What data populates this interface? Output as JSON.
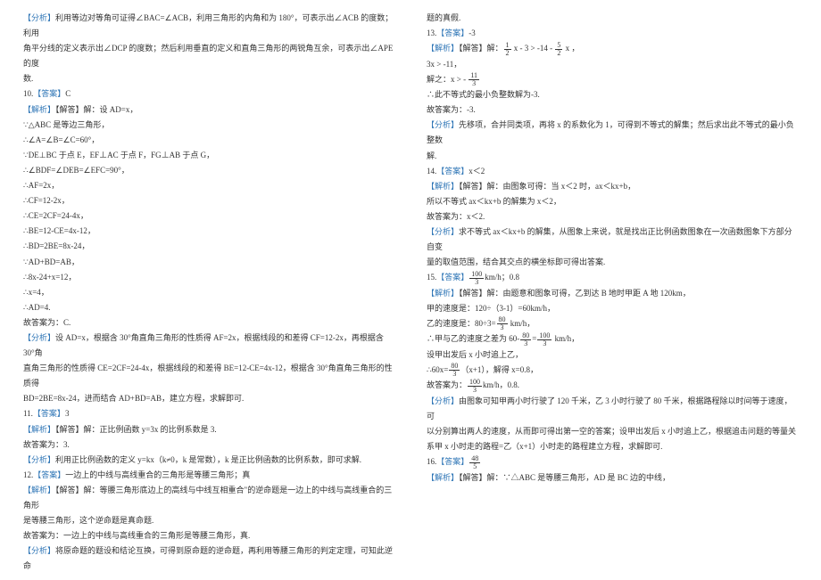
{
  "marks": {
    "analysis": "【分析】",
    "answer": "【答案】",
    "explain": "【解析】",
    "solve": "【解答】"
  },
  "left": {
    "l1": "利用等边对等角可证得∠BAC=∠ACB，利用三角形的内角和为 180°，可表示出∠ACB 的度数；利用",
    "l2": "角平分线的定义表示出∠DCP 的度数；然后利用垂直的定义和直角三角形的两锐角互余，可表示出∠APE 的度",
    "l3": "数.",
    "q10num": "10.",
    "q10ans": "C",
    "s1": "解：设 AD=x，",
    "s2": "∵△ABC 是等边三角形，",
    "s3": "∴∠A=∠B=∠C=60°，",
    "s4": "∵DE⊥BC 于点 E，EF⊥AC 于点 F，FG⊥AB 于点 G，",
    "s5": "∴∠BDF=∠DEB=∠EFC=90°，",
    "s6": "∴AF=2x，",
    "s7": "∴CF=12-2x，",
    "s8": "∴CE=2CF=24-4x，",
    "s9": "∴BE=12-CE=4x-12，",
    "s10": "∴BD=2BE=8x-24，",
    "s11": "∵AD+BD=AB，",
    "s12": "∴8x-24+x=12，",
    "s13": "∴x=4，",
    "s14": "∴AD=4.",
    "s15": "故答案为：C.",
    "an10a": "设 AD=x，根据含 30°角直角三角形的性质得 AF=2x，根据线段的和差得 CF=12-2x，再根据含 30°角",
    "an10b": "直角三角形的性质得 CE=2CF=24-4x，根据线段的和差得 BE=12-CE=4x-12，根据含 30°角直角三角形的性质得",
    "an10c": "BD=2BE=8x-24，进而结合 AD+BD=AB，建立方程，求解即可.",
    "q11num": "11.",
    "q11ans": "3",
    "s11a": "解：正比例函数 y=3x 的比例系数是 3.",
    "s11b": "故答案为：3.",
    "an11": "利用正比例函数的定义 y=kx（k≠0，k 是常数），k 是正比例函数的比例系数，即可求解.",
    "q12num": "12.",
    "q12ans": "一边上的中线与高线重合的三角形是等腰三角形；真",
    "s12a": "解：等腰三角形底边上的高线与中线互相重合\"的逆命题是一边上的中线与高线重合的三角形",
    "s12b": "是等腰三角形，这个逆命题是真命题.",
    "s12c": "故答案为：一边上的中线与高线重合的三角形是等腰三角形，真.",
    "an12": "将原命题的题设和结论互换，可得到原命题的逆命题，再利用等腰三角形的判定定理，可知此逆命"
  },
  "right": {
    "r1": "题的真假.",
    "q13num": "13.",
    "q13ans": "-3",
    "r13a_pre": "解：",
    "r13a_post": " x - 3 > -14 - ",
    "r13a_tail": " x ，",
    "f_half_num": "1",
    "f_half_den": "2",
    "f_52_num": "5",
    "f_52_den": "2",
    "r13b": "3x > -11，",
    "r13c_pre": "解之：x > - ",
    "f_113_num": "11",
    "f_113_den": "3",
    "r13d": "∴此不等式的最小负整数解为-3.",
    "r13e": "故答案为：-3.",
    "an13": "先移项，合并同类项，再将 x 的系数化为 1，可得到不等式的解集；然后求出此不等式的最小负整数",
    "an13b": "解.",
    "q14num": "14.",
    "q14ans": "x＜2",
    "r14a": "解：由图象可得：当 x＜2 时，ax＜kx+b，",
    "r14b": "所以不等式 ax＜kx+b 的解集为 x＜2，",
    "r14c": "故答案为：x＜2.",
    "an14a": "求不等式 ax＜kx+b 的解集，从图象上来说，就是找出正比例函数图象在一次函数图象下方部分自变",
    "an14b": "量的取值范围，结合其交点的横坐标即可得出答案.",
    "q15num": "15.",
    "q15ans_pre": "",
    "f_1003_num": "100",
    "f_1003_den": "3",
    "q15ans_post": "km/h；0.8",
    "r15a": "解：由题意和图象可得，乙到达 B 地时甲距 A 地 120km，",
    "r15b": "甲的速度是：120÷（3-1）=60km/h，",
    "r15c_pre": "乙的速度是：80÷3=",
    "f_803_num": "80",
    "f_803_den": "3",
    "r15c_post": " km/h，",
    "r15d_pre": "∴甲与乙的速度之差为 60-",
    "r15d_mid": "=",
    "r15d_post": " km/h，",
    "r15e": "设甲出发后 x 小时追上乙，",
    "r15f_pre": "∴60x=",
    "r15f_post": "（x+1），解得 x=0.8，",
    "r15g_pre": "故答案为：",
    "r15g_post": "km/h，0.8.",
    "an15a": "由图象可知甲两小时行驶了 120 千米，乙 3 小时行驶了 80 千米，根据路程除以时间等于速度，可",
    "an15b": "以分别算出两人的速度，从而即可得出第一空的答案；设甲出发后 x 小时追上乙，根据追击问题的等量关",
    "an15c": "系甲 x 小时走的路程=乙（x+1）小时走的路程建立方程，求解即可.",
    "q16num": "16.",
    "f_485_num": "48",
    "f_485_den": "5",
    "r16a": "解：∵△ABC 是等腰三角形，AD 是 BC 边的中线，"
  }
}
